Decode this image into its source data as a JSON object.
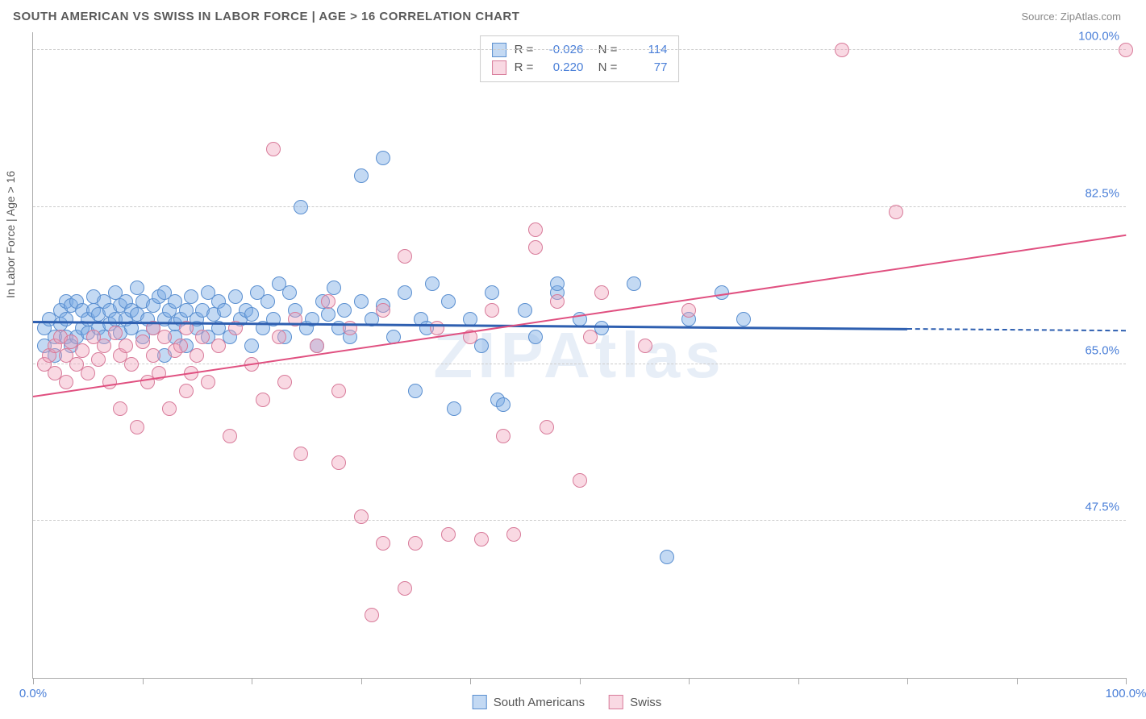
{
  "header": {
    "title": "SOUTH AMERICAN VS SWISS IN LABOR FORCE | AGE > 16 CORRELATION CHART",
    "source": "Source: ZipAtlas.com"
  },
  "watermark": {
    "text": "ZIPAtlas",
    "color": "rgba(120,160,210,0.18)"
  },
  "chart": {
    "type": "scatter",
    "y_axis_label": "In Labor Force | Age > 16",
    "xlim": [
      0,
      100
    ],
    "ylim": [
      30,
      102
    ],
    "x_ticks": [
      0,
      10,
      20,
      30,
      40,
      50,
      60,
      70,
      80,
      90,
      100
    ],
    "x_tick_labels": {
      "0": "0.0%",
      "100": "100.0%"
    },
    "y_gridlines": [
      47.5,
      65.0,
      82.5,
      100.0
    ],
    "y_tick_labels": [
      "47.5%",
      "65.0%",
      "82.5%",
      "100.0%"
    ],
    "grid_color": "#cccccc",
    "axis_color": "#aaaaaa",
    "background_color": "#ffffff",
    "tick_label_color": "#4a7fd8",
    "axis_label_color": "#5a5a5a",
    "point_radius": 9,
    "point_stroke_width": 1,
    "series": [
      {
        "name": "South Americans",
        "fill": "rgba(122,170,228,0.45)",
        "stroke": "#5a8fd0",
        "r_value": "-0.026",
        "n_value": "114",
        "trend": {
          "x1": 0,
          "y1": 69.8,
          "x2": 80,
          "y2": 69.0,
          "color": "#2e5fb0",
          "width": 3,
          "dash_to": 100
        },
        "points": [
          [
            1,
            67
          ],
          [
            1,
            69
          ],
          [
            1.5,
            70
          ],
          [
            2,
            66
          ],
          [
            2,
            68
          ],
          [
            2.5,
            69.5
          ],
          [
            2.5,
            71
          ],
          [
            3,
            68
          ],
          [
            3,
            70
          ],
          [
            3,
            72
          ],
          [
            3.5,
            67
          ],
          [
            3.5,
            71.5
          ],
          [
            4,
            68
          ],
          [
            4,
            72
          ],
          [
            4.5,
            69
          ],
          [
            4.5,
            71
          ],
          [
            5,
            68.5
          ],
          [
            5,
            70
          ],
          [
            5.5,
            71
          ],
          [
            5.5,
            72.5
          ],
          [
            6,
            69
          ],
          [
            6,
            70.5
          ],
          [
            6.5,
            68
          ],
          [
            6.5,
            72
          ],
          [
            7,
            69.5
          ],
          [
            7,
            71
          ],
          [
            7.5,
            70
          ],
          [
            7.5,
            73
          ],
          [
            8,
            68.5
          ],
          [
            8,
            71.5
          ],
          [
            8.5,
            70
          ],
          [
            8.5,
            72
          ],
          [
            9,
            69
          ],
          [
            9,
            71
          ],
          [
            9.5,
            70.5
          ],
          [
            9.5,
            73.5
          ],
          [
            10,
            68
          ],
          [
            10,
            72
          ],
          [
            10.5,
            70
          ],
          [
            11,
            69
          ],
          [
            11,
            71.5
          ],
          [
            11.5,
            72.5
          ],
          [
            12,
            66
          ],
          [
            12,
            70
          ],
          [
            12,
            73
          ],
          [
            12.5,
            71
          ],
          [
            13,
            68
          ],
          [
            13,
            69.5
          ],
          [
            13,
            72
          ],
          [
            13.5,
            70
          ],
          [
            14,
            67
          ],
          [
            14,
            71
          ],
          [
            14.5,
            72.5
          ],
          [
            15,
            69
          ],
          [
            15,
            70
          ],
          [
            15.5,
            71
          ],
          [
            16,
            68
          ],
          [
            16,
            73
          ],
          [
            16.5,
            70.5
          ],
          [
            17,
            69
          ],
          [
            17,
            72
          ],
          [
            17.5,
            71
          ],
          [
            18,
            68
          ],
          [
            18.5,
            72.5
          ],
          [
            19,
            70
          ],
          [
            19.5,
            71
          ],
          [
            20,
            67
          ],
          [
            20,
            70.5
          ],
          [
            20.5,
            73
          ],
          [
            21,
            69
          ],
          [
            21.5,
            72
          ],
          [
            22,
            70
          ],
          [
            22.5,
            74
          ],
          [
            23,
            68
          ],
          [
            23.5,
            73
          ],
          [
            24,
            71
          ],
          [
            24.5,
            82.5
          ],
          [
            25,
            69
          ],
          [
            25.5,
            70
          ],
          [
            26,
            67
          ],
          [
            26.5,
            72
          ],
          [
            27,
            70.5
          ],
          [
            27.5,
            73.5
          ],
          [
            28,
            69
          ],
          [
            28.5,
            71
          ],
          [
            29,
            68
          ],
          [
            30,
            72
          ],
          [
            30,
            86
          ],
          [
            31,
            70
          ],
          [
            32,
            88
          ],
          [
            32,
            71.5
          ],
          [
            33,
            68
          ],
          [
            34,
            73
          ],
          [
            35,
            62
          ],
          [
            35.5,
            70
          ],
          [
            36,
            69
          ],
          [
            36.5,
            74
          ],
          [
            38,
            72
          ],
          [
            38.5,
            60
          ],
          [
            40,
            70
          ],
          [
            41,
            67
          ],
          [
            42,
            73
          ],
          [
            42.5,
            61
          ],
          [
            43,
            60.5
          ],
          [
            45,
            71
          ],
          [
            46,
            68
          ],
          [
            48,
            73
          ],
          [
            48,
            74
          ],
          [
            50,
            70
          ],
          [
            52,
            69
          ],
          [
            55,
            74
          ],
          [
            58,
            43.5
          ],
          [
            60,
            70
          ],
          [
            63,
            73
          ],
          [
            65,
            70
          ]
        ]
      },
      {
        "name": "Swiss",
        "fill": "rgba(240,160,185,0.40)",
        "stroke": "#d87b9a",
        "r_value": "0.220",
        "n_value": "77",
        "trend": {
          "x1": 0,
          "y1": 61.5,
          "x2": 100,
          "y2": 79.5,
          "color": "#e05080",
          "width": 2
        },
        "points": [
          [
            1,
            65
          ],
          [
            1.5,
            66
          ],
          [
            2,
            64
          ],
          [
            2,
            67
          ],
          [
            2.5,
            68
          ],
          [
            3,
            63
          ],
          [
            3,
            66
          ],
          [
            3.5,
            67.5
          ],
          [
            4,
            65
          ],
          [
            4.5,
            66.5
          ],
          [
            5,
            64
          ],
          [
            5.5,
            68
          ],
          [
            6,
            65.5
          ],
          [
            6.5,
            67
          ],
          [
            7,
            63
          ],
          [
            7.5,
            68.5
          ],
          [
            8,
            60
          ],
          [
            8,
            66
          ],
          [
            8.5,
            67
          ],
          [
            9,
            65
          ],
          [
            9.5,
            58
          ],
          [
            10,
            67.5
          ],
          [
            10.5,
            63
          ],
          [
            11,
            66
          ],
          [
            11,
            69
          ],
          [
            11.5,
            64
          ],
          [
            12,
            68
          ],
          [
            12.5,
            60
          ],
          [
            13,
            66.5
          ],
          [
            13.5,
            67
          ],
          [
            14,
            62
          ],
          [
            14,
            69
          ],
          [
            14.5,
            64
          ],
          [
            15,
            66
          ],
          [
            15.5,
            68
          ],
          [
            16,
            63
          ],
          [
            17,
            67
          ],
          [
            18,
            57
          ],
          [
            18.5,
            69
          ],
          [
            20,
            65
          ],
          [
            21,
            61
          ],
          [
            22,
            89
          ],
          [
            22.5,
            68
          ],
          [
            23,
            63
          ],
          [
            24,
            70
          ],
          [
            24.5,
            55
          ],
          [
            26,
            67
          ],
          [
            27,
            72
          ],
          [
            28,
            54
          ],
          [
            28,
            62
          ],
          [
            29,
            69
          ],
          [
            30,
            48
          ],
          [
            31,
            37
          ],
          [
            32,
            45
          ],
          [
            32,
            71
          ],
          [
            34,
            40
          ],
          [
            34,
            77
          ],
          [
            35,
            45
          ],
          [
            37,
            69
          ],
          [
            38,
            46
          ],
          [
            40,
            68
          ],
          [
            41,
            45.5
          ],
          [
            42,
            71
          ],
          [
            43,
            57
          ],
          [
            44,
            46
          ],
          [
            46,
            80
          ],
          [
            46,
            78
          ],
          [
            47,
            58
          ],
          [
            48,
            72
          ],
          [
            50,
            52
          ],
          [
            51,
            68
          ],
          [
            52,
            73
          ],
          [
            56,
            67
          ],
          [
            60,
            71
          ],
          [
            74,
            100
          ],
          [
            79,
            82
          ],
          [
            100,
            100
          ]
        ]
      }
    ]
  },
  "legend_bottom": [
    {
      "label": "South Americans",
      "fill": "rgba(122,170,228,0.45)",
      "stroke": "#5a8fd0"
    },
    {
      "label": "Swiss",
      "fill": "rgba(240,160,185,0.40)",
      "stroke": "#d87b9a"
    }
  ]
}
